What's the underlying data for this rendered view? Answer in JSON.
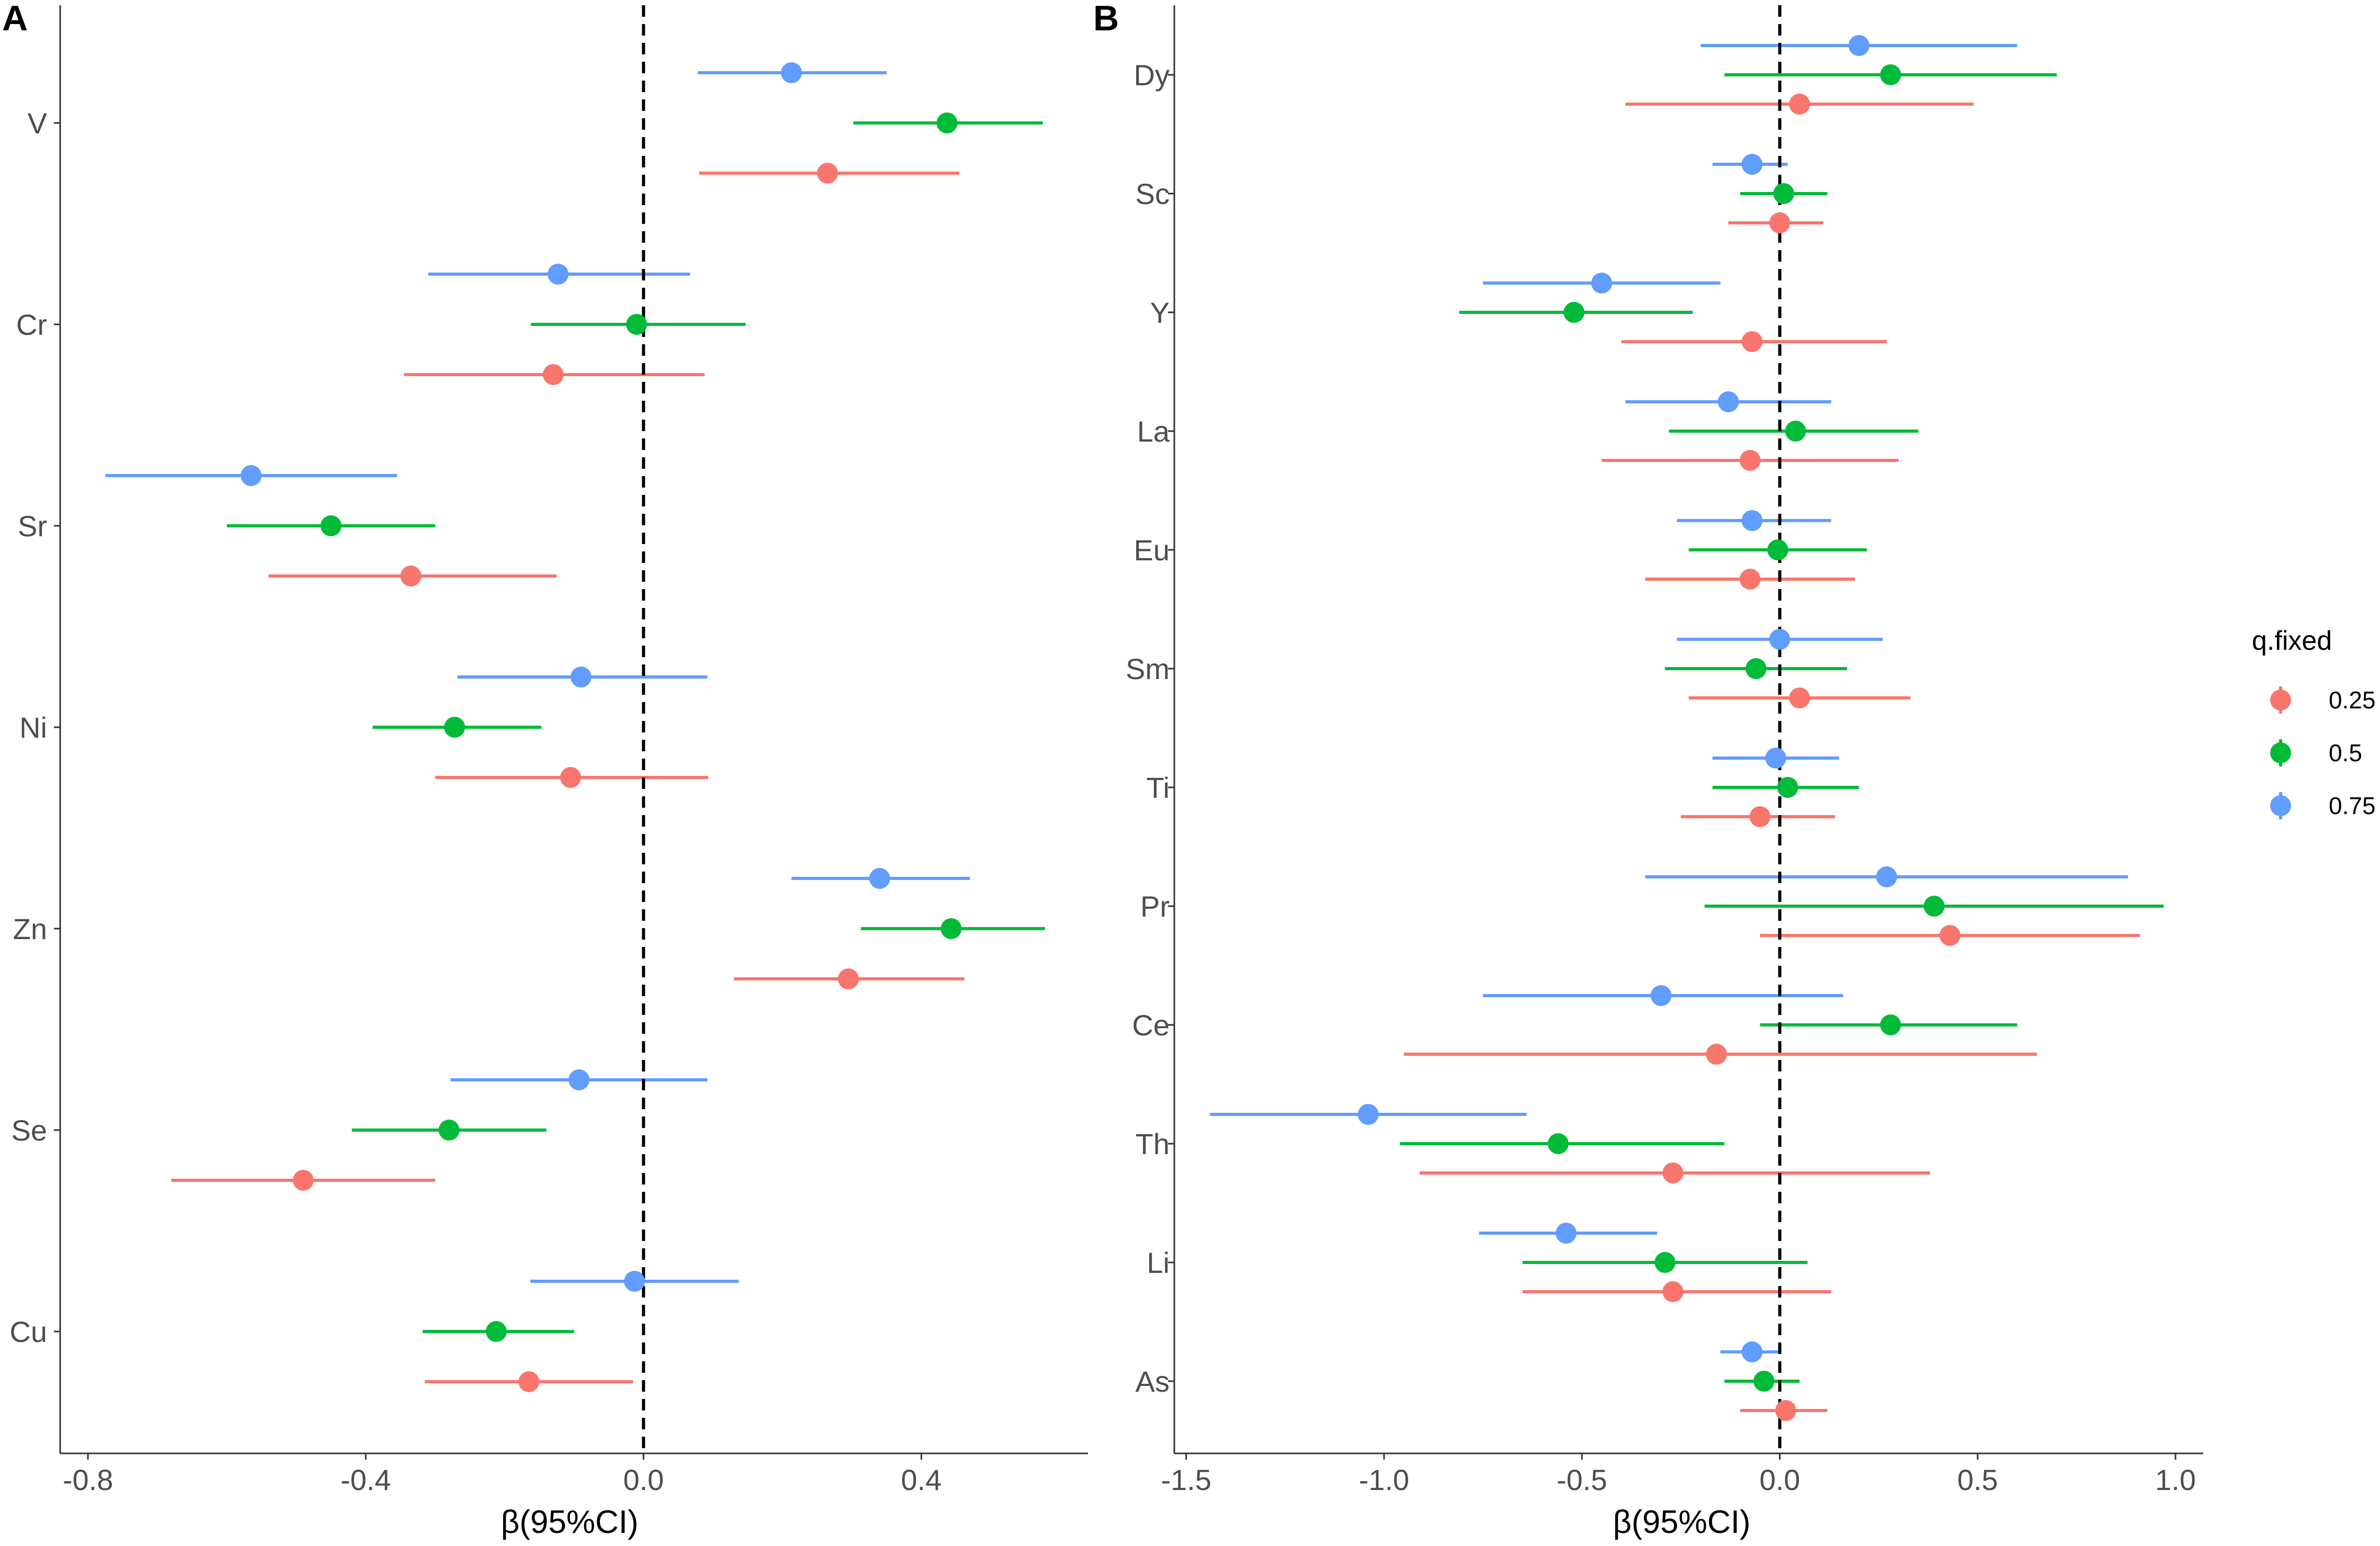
{
  "legend": {
    "title": "q.fixed",
    "entries": [
      {
        "label": "0.25",
        "color": "#F8766D"
      },
      {
        "label": "0.5",
        "color": "#00BA38"
      },
      {
        "label": "0.75",
        "color": "#619CFF"
      }
    ]
  },
  "chart_data": [
    {
      "type": "forest",
      "panel": "A",
      "xlabel": "β(95%CI)",
      "ylabel": "",
      "xlim": [
        -0.84,
        0.64
      ],
      "xticks": [
        -0.8,
        -0.4,
        0.0,
        0.4
      ],
      "xtick_labels": [
        "-0.8",
        "-0.4",
        "0.0",
        "0.4"
      ],
      "reference_line": 0,
      "categories": [
        "V",
        "Cr",
        "Sr",
        "Ni",
        "Zn",
        "Se",
        "Cu"
      ],
      "series": [
        {
          "name": "0.25",
          "color": "#F8766D",
          "estimates": [
            0.265,
            -0.13,
            -0.335,
            -0.105,
            0.295,
            -0.49,
            -0.165
          ],
          "lower": [
            0.08,
            -0.345,
            -0.54,
            -0.3,
            0.13,
            -0.68,
            -0.315
          ],
          "upper": [
            0.455,
            0.088,
            -0.125,
            0.093,
            0.462,
            -0.3,
            -0.015
          ]
        },
        {
          "name": "0.5",
          "color": "#00BA38",
          "estimates": [
            0.437,
            -0.01,
            -0.45,
            -0.272,
            0.443,
            -0.28,
            -0.212
          ],
          "lower": [
            0.302,
            -0.162,
            -0.6,
            -0.39,
            0.313,
            -0.42,
            -0.318
          ],
          "upper": [
            0.575,
            0.147,
            -0.3,
            -0.147,
            0.578,
            -0.14,
            -0.1
          ]
        },
        {
          "name": "0.75",
          "color": "#619CFF",
          "estimates": [
            0.213,
            -0.123,
            -0.565,
            -0.09,
            0.34,
            -0.093,
            -0.013
          ],
          "lower": [
            0.078,
            -0.31,
            -0.775,
            -0.268,
            0.213,
            -0.278,
            -0.163
          ],
          "upper": [
            0.35,
            0.067,
            -0.355,
            0.092,
            0.47,
            0.092,
            0.137
          ]
        }
      ]
    },
    {
      "type": "forest",
      "panel": "B",
      "xlabel": "β(95%CI)",
      "ylabel": "",
      "xlim": [
        -1.53,
        1.07
      ],
      "xticks": [
        -1.5,
        -1.0,
        -0.5,
        0.0,
        0.5,
        1.0
      ],
      "xtick_labels": [
        "-1.5",
        "-1.0",
        "-0.5",
        "0.0",
        "0.5",
        "1.0"
      ],
      "reference_line": 0,
      "categories": [
        "Dy",
        "Sc",
        "Y",
        "La",
        "Eu",
        "Sm",
        "Ti",
        "Pr",
        "Ce",
        "Th",
        "Li",
        "As"
      ],
      "series": [
        {
          "name": "0.25",
          "color": "#F8766D",
          "estimates": [
            0.05,
            0.0,
            -0.07,
            -0.075,
            -0.075,
            0.05,
            -0.05,
            0.43,
            -0.16,
            -0.27,
            -0.27,
            0.015
          ],
          "lower": [
            -0.39,
            -0.13,
            -0.4,
            -0.45,
            -0.34,
            -0.23,
            -0.25,
            -0.05,
            -0.95,
            -0.91,
            -0.65,
            -0.1
          ],
          "upper": [
            0.49,
            0.11,
            0.27,
            0.3,
            0.19,
            0.33,
            0.14,
            0.91,
            0.65,
            0.38,
            0.13,
            0.12
          ]
        },
        {
          "name": "0.5",
          "color": "#00BA38",
          "estimates": [
            0.28,
            0.01,
            -0.52,
            0.04,
            -0.005,
            -0.06,
            0.02,
            0.39,
            0.28,
            -0.56,
            -0.29,
            -0.04
          ],
          "lower": [
            -0.14,
            -0.1,
            -0.81,
            -0.28,
            -0.23,
            -0.29,
            -0.17,
            -0.19,
            -0.05,
            -0.96,
            -0.65,
            -0.14
          ],
          "upper": [
            0.7,
            0.12,
            -0.22,
            0.35,
            0.22,
            0.17,
            0.2,
            0.97,
            0.6,
            -0.14,
            0.07,
            0.05
          ]
        },
        {
          "name": "0.75",
          "color": "#619CFF",
          "estimates": [
            0.2,
            -0.07,
            -0.45,
            -0.13,
            -0.07,
            0.0,
            -0.01,
            0.27,
            -0.3,
            -1.04,
            -0.54,
            -0.07
          ],
          "lower": [
            -0.2,
            -0.17,
            -0.75,
            -0.39,
            -0.26,
            -0.26,
            -0.17,
            -0.34,
            -0.75,
            -1.44,
            -0.76,
            -0.15
          ],
          "upper": [
            0.6,
            0.02,
            -0.15,
            0.13,
            0.13,
            0.26,
            0.15,
            0.88,
            0.16,
            -0.64,
            -0.31,
            0.0
          ]
        }
      ]
    }
  ]
}
